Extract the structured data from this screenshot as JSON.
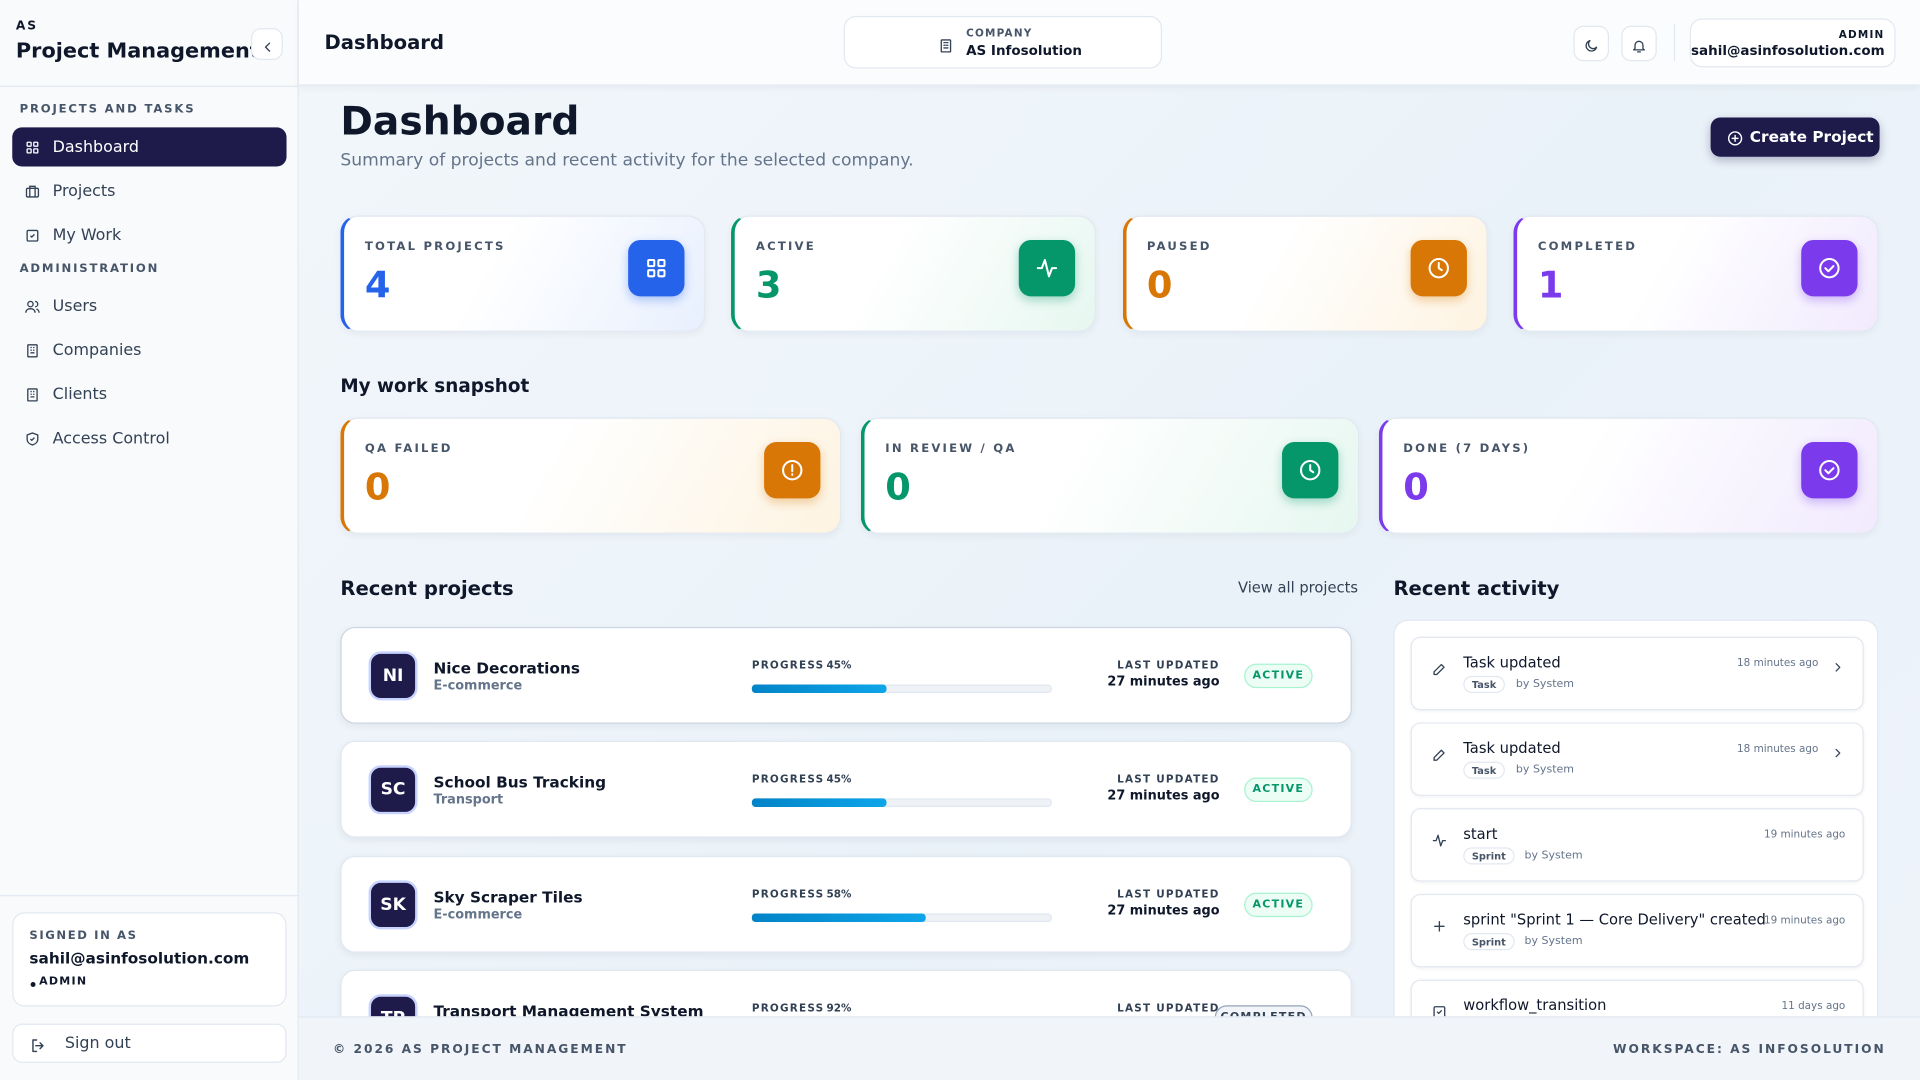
{
  "sidebar": {
    "brand_small": "AS",
    "brand": "Project Management",
    "sections": [
      {
        "title": "PROJECTS AND TASKS",
        "items": [
          "Dashboard",
          "Projects",
          "My Work"
        ]
      },
      {
        "title": "ADMINISTRATION",
        "items": [
          "Users",
          "Companies",
          "Clients",
          "Access Control"
        ]
      }
    ],
    "signed_in": {
      "label": "SIGNED IN AS",
      "email": "sahil@asinfosolution.com",
      "role": "ADMIN"
    },
    "sign_out": "Sign out"
  },
  "header": {
    "title": "Dashboard",
    "company_label": "COMPANY",
    "company": "AS Infosolution",
    "user_role": "ADMIN",
    "user_email": "sahil@asinfosolution.com"
  },
  "page": {
    "title": "Dashboard",
    "subtitle": "Summary of projects and recent activity for the selected company.",
    "create_button": "Create Project"
  },
  "stats": [
    {
      "label": "TOTAL PROJECTS",
      "value": 4
    },
    {
      "label": "ACTIVE",
      "value": 3
    },
    {
      "label": "PAUSED",
      "value": 0
    },
    {
      "label": "COMPLETED",
      "value": 1
    }
  ],
  "snapshot": {
    "title": "My work snapshot",
    "cards": [
      {
        "label": "QA FAILED",
        "value": 0
      },
      {
        "label": "IN REVIEW / QA",
        "value": 0
      },
      {
        "label": "DONE (7 DAYS)",
        "value": 0
      }
    ]
  },
  "recent_projects": {
    "title": "Recent projects",
    "view_all": "View all projects",
    "progress_caption": "PROGRESS",
    "updated_caption": "LAST UPDATED",
    "items": [
      {
        "initials": "NI",
        "name": "Nice Decorations",
        "category": "E-commerce",
        "progress": 45,
        "progress_label": "45%",
        "updated": "27 minutes ago",
        "status": "ACTIVE"
      },
      {
        "initials": "SC",
        "name": "School Bus Tracking",
        "category": "Transport",
        "progress": 45,
        "progress_label": "45%",
        "updated": "27 minutes ago",
        "status": "ACTIVE"
      },
      {
        "initials": "SK",
        "name": "Sky Scraper Tiles",
        "category": "E-commerce",
        "progress": 58,
        "progress_label": "58%",
        "updated": "27 minutes ago",
        "status": "ACTIVE"
      },
      {
        "initials": "TP",
        "name": "Transport Management System",
        "progress": 92,
        "progress_label": "92%",
        "status": "COMPLETED"
      }
    ]
  },
  "recent_activity": {
    "title": "Recent activity",
    "items": [
      {
        "title": "Task updated",
        "time": "18 minutes ago",
        "tag": "Task",
        "by": "by System"
      },
      {
        "title": "Task updated",
        "time": "18 minutes ago",
        "tag": "Task",
        "by": "by System"
      },
      {
        "title": "start",
        "time": "19 minutes ago",
        "tag": "Sprint",
        "by": "by System"
      },
      {
        "title": "sprint \"Sprint 1 — Core Delivery\" created",
        "time": "19 minutes ago",
        "tag": "Sprint",
        "by": "by System"
      },
      {
        "title": "workflow_transition",
        "time": "11 days ago"
      }
    ]
  },
  "footer": {
    "copyright": "© 2026 AS PROJECT MANAGEMENT",
    "workspace": "WORKSPACE: AS INFOSOLUTION"
  }
}
